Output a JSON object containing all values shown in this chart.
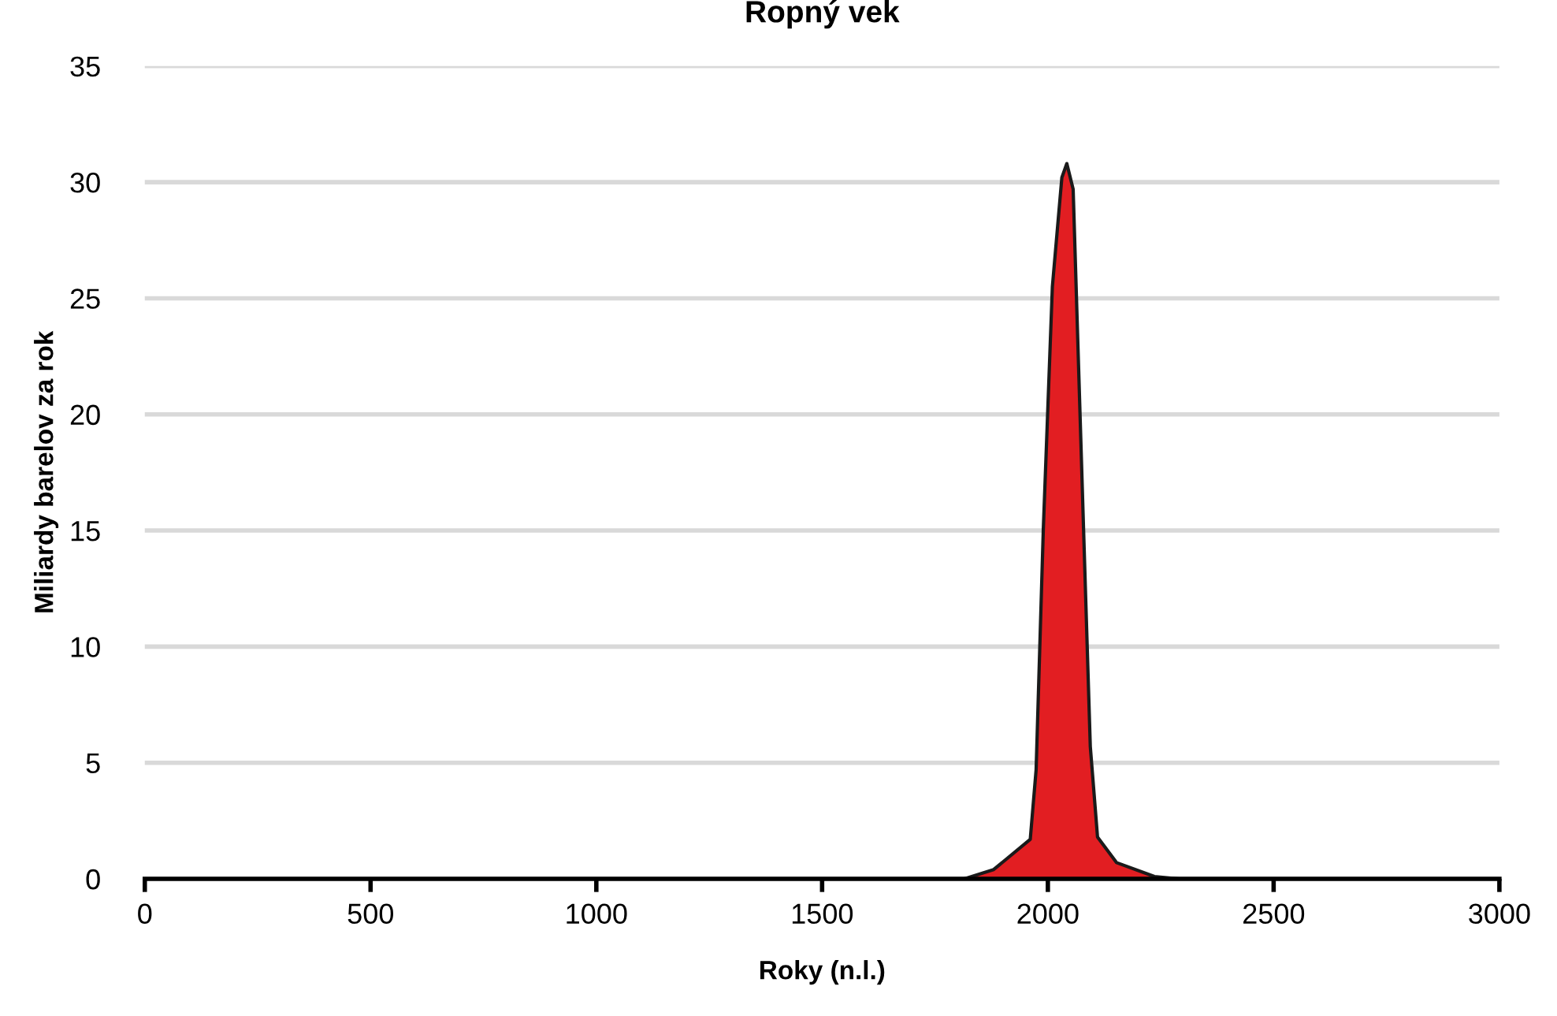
{
  "chart_data": {
    "type": "area",
    "title": "Ropný vek",
    "xlabel": "Roky (n.l.)",
    "ylabel": "Miliardy barelov za rok",
    "x": [
      1815,
      1880,
      1961,
      1974,
      1990,
      2010,
      2031,
      2042,
      2056,
      2079,
      2094,
      2110,
      2152,
      2236,
      2287
    ],
    "series": [
      {
        "color": "#e21e22",
        "values": [
          0,
          0.4,
          1.7,
          4.7,
          15.1,
          25.5,
          30.2,
          30.8,
          29.7,
          15.1,
          5.7,
          1.8,
          0.7,
          0.1,
          0
        ]
      }
    ],
    "xlim": [
      0,
      3000
    ],
    "xticks": [
      0,
      500,
      1000,
      1500,
      2000,
      2500,
      3000
    ],
    "ylim": [
      0,
      35
    ],
    "yticks": [
      0,
      5,
      10,
      15,
      20,
      25,
      30,
      35
    ],
    "grid": "y",
    "legend": false
  }
}
